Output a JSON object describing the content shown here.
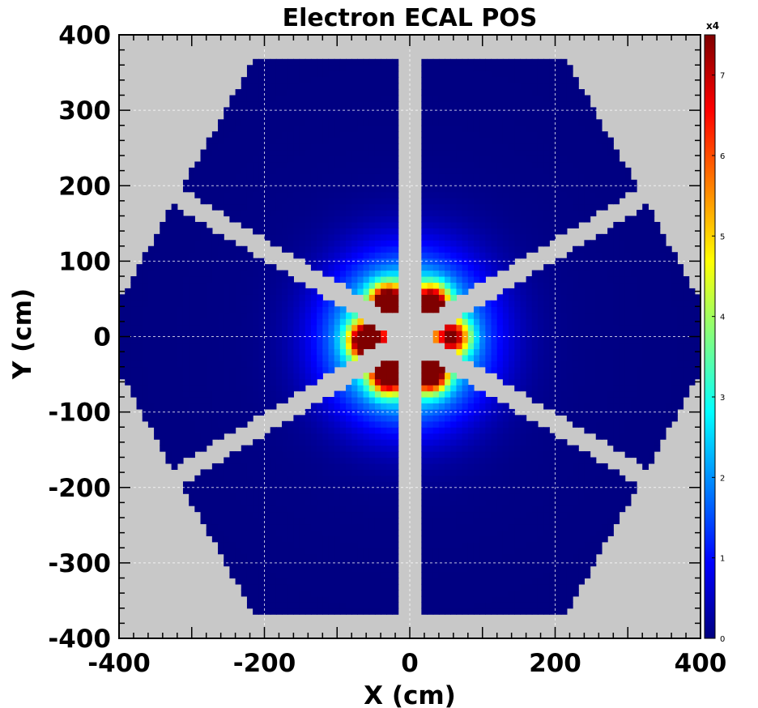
{
  "chart_data": {
    "type": "heatmap",
    "title": "Electron ECAL POS",
    "xlabel": "X (cm)",
    "ylabel": "Y (cm)",
    "xlim": [
      -400,
      400
    ],
    "ylim": [
      -400,
      400
    ],
    "x_ticks": [
      "-400",
      "-200",
      "0",
      "200",
      "400"
    ],
    "y_ticks": [
      "400",
      "300",
      "200",
      "100",
      "0",
      "-100",
      "-200",
      "-300",
      "-400"
    ],
    "colorbar": {
      "range": [
        0,
        7.5
      ],
      "multiplier_label": "x4",
      "ticks": [
        "0",
        "1",
        "2",
        "3",
        "4",
        "5",
        "6",
        "7"
      ]
    },
    "grid": true,
    "background_color": "#c8c8c8",
    "colormap": [
      "#00007f",
      "#0000ff",
      "#0080ff",
      "#00ffff",
      "#80ff80",
      "#ffff00",
      "#ff8000",
      "#ff0000",
      "#7f0000"
    ],
    "detector": {
      "shape": "hexagon",
      "sectors": 6,
      "inner_hole_radius_cm": 35,
      "gap_half_width_cm": 13,
      "outer_edge_cm": 370
    },
    "hotspots": [
      {
        "x": -30,
        "y": 45,
        "value": 7.4
      },
      {
        "x": 30,
        "y": 45,
        "value": 6.5
      },
      {
        "x": -60,
        "y": -5,
        "value": 7.2
      },
      {
        "x": 60,
        "y": 0,
        "value": 4.8
      },
      {
        "x": -30,
        "y": -50,
        "value": 7.0
      },
      {
        "x": 28,
        "y": -48,
        "value": 7.3
      }
    ]
  }
}
